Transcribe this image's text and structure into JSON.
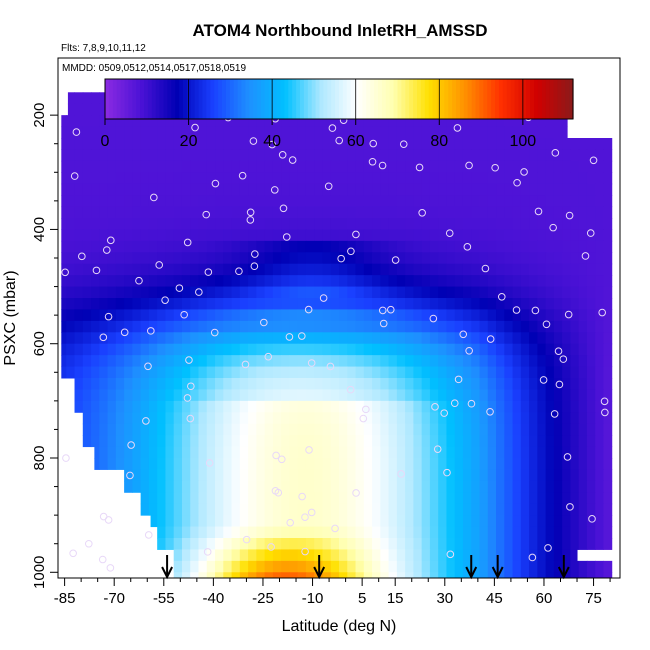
{
  "chart_data": {
    "type": "heatmap",
    "title": "ATOM4 Northbound InletRH_AMSSD",
    "subtitle_flights": "Flts: 7,8,9,10,11,12",
    "subtitle_dates": "MMDD: 0509,0512,0514,0517,0518,0519",
    "xlabel": "Latitude (deg N)",
    "ylabel": "PSXC (mbar)",
    "xlim": [
      -87,
      83
    ],
    "ylim": [
      1010,
      100
    ],
    "x_ticks": [
      -85,
      -70,
      -55,
      -40,
      -25,
      -10,
      5,
      15,
      30,
      45,
      60,
      75
    ],
    "y_ticks": [
      200,
      400,
      600,
      800,
      1000
    ],
    "colorbar": {
      "range": [
        0,
        112
      ],
      "ticks": [
        0,
        20,
        40,
        60,
        80,
        100
      ],
      "colors": [
        "#8b2be2",
        "#4b12d6",
        "#0000b4",
        "#1a40ff",
        "#1e90ff",
        "#00c0ff",
        "#aee8ff",
        "#ffffff",
        "#ffffb0",
        "#ffe000",
        "#ff9000",
        "#ff3000",
        "#d00000",
        "#8b1a1a"
      ]
    },
    "grid": false,
    "legend": "top colorbar",
    "flight_arrows_lat": [
      -54,
      -8,
      38,
      46,
      66
    ]
  }
}
